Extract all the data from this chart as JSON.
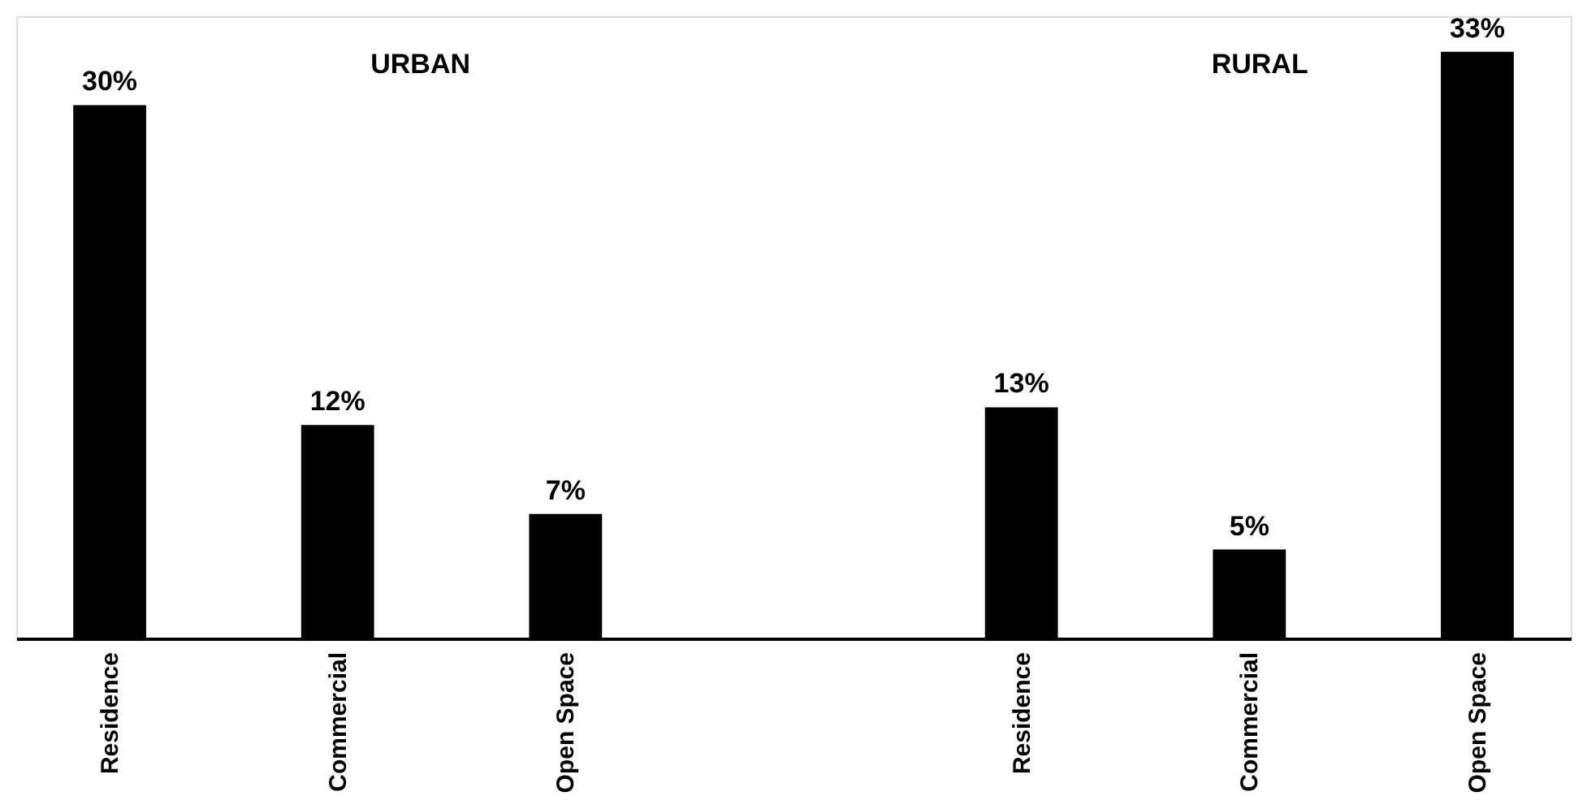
{
  "chart_data": {
    "type": "bar",
    "categories": [
      "Residence",
      "Commercial",
      "Open Space",
      null,
      "Residence",
      "Commercial",
      "Open Space"
    ],
    "values": [
      30,
      12,
      7,
      null,
      13,
      5,
      33
    ],
    "value_labels": [
      "30%",
      "12%",
      "7%",
      null,
      "13%",
      "5%",
      "33%"
    ],
    "color": "#000000",
    "annotations": [
      "URBAN",
      "RURAL"
    ],
    "grid": false
  }
}
